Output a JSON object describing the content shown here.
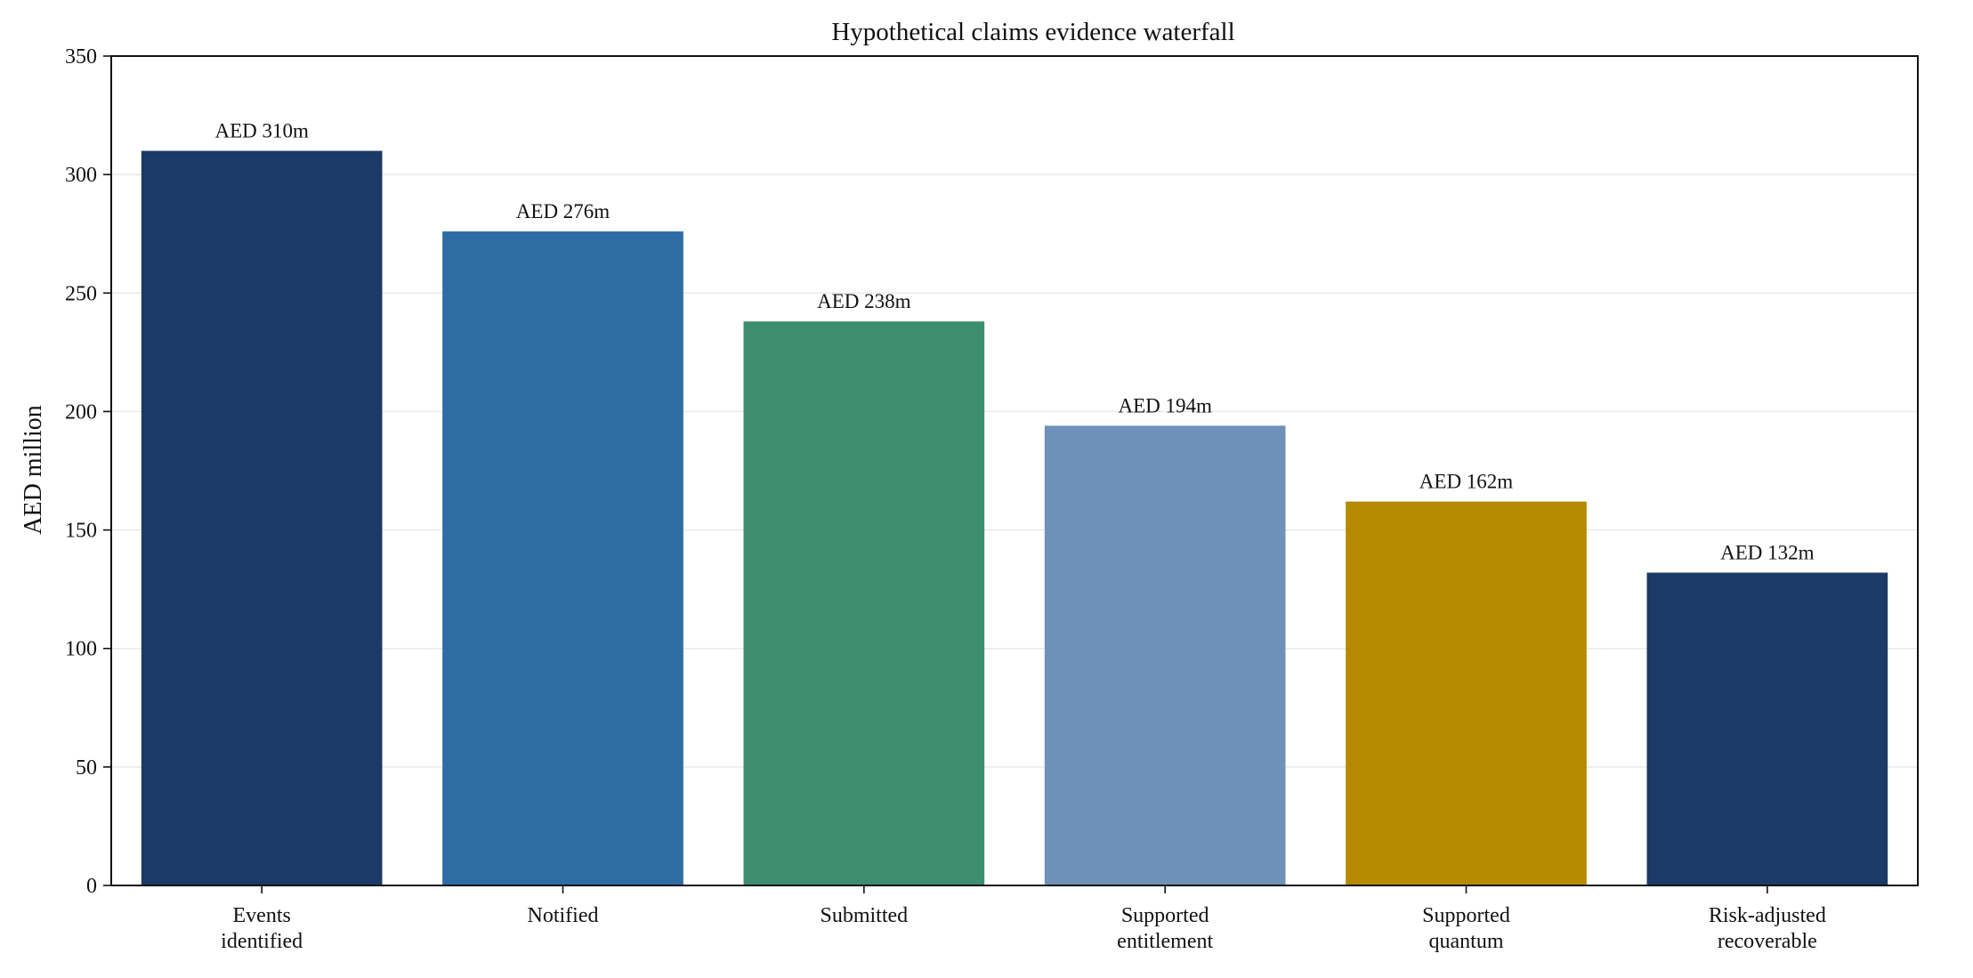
{
  "chart_data": {
    "type": "bar",
    "title": "Hypothetical claims evidence waterfall",
    "xlabel": "",
    "ylabel": "AED million",
    "ylim": [
      0,
      350
    ],
    "yticks": [
      0,
      50,
      100,
      150,
      200,
      250,
      300,
      350
    ],
    "grid": "horizontal",
    "categories": [
      [
        "Events",
        "identified"
      ],
      [
        "Notified"
      ],
      [
        "Submitted"
      ],
      [
        "Supported",
        "entitlement"
      ],
      [
        "Supported",
        "quantum"
      ],
      [
        "Risk-adjusted",
        "recoverable"
      ]
    ],
    "values": [
      310,
      276,
      238,
      194,
      162,
      132
    ],
    "data_labels": [
      "AED 310m",
      "AED 276m",
      "AED 238m",
      "AED 194m",
      "AED 162m",
      "AED 132m"
    ],
    "colors": [
      "#1b3a66",
      "#2e6ca4",
      "#3d8d70",
      "#6e91b9",
      "#b58a00",
      "#1b3a66"
    ]
  }
}
